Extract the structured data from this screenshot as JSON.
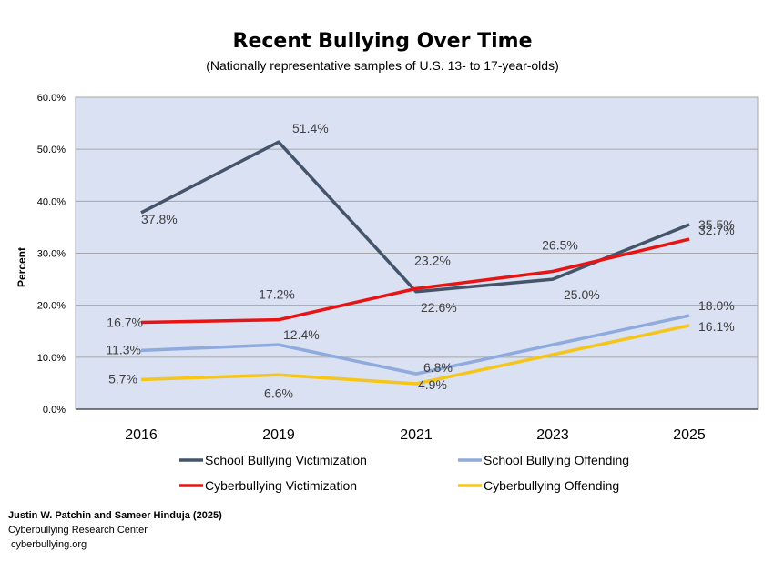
{
  "chart_data": {
    "type": "line",
    "title": "Recent Bullying Over Time",
    "subtitle": "(Nationally representative samples of U.S. 13- to 17-year-olds)",
    "xlabel": "",
    "ylabel": "Percent",
    "categories": [
      "2016",
      "2019",
      "2021",
      "2023",
      "2025"
    ],
    "ylim": [
      0,
      60
    ],
    "yticks": [
      0,
      10,
      20,
      30,
      40,
      50,
      60
    ],
    "ytick_labels": [
      "0.0%",
      "10.0%",
      "20.0%",
      "30.0%",
      "40.0%",
      "50.0%",
      "60.0%"
    ],
    "grid": true,
    "legend_position": "bottom",
    "series": [
      {
        "name": "School Bullying Victimization",
        "color": "#44546A",
        "values": [
          37.8,
          51.4,
          22.6,
          25.0,
          35.5
        ],
        "labels": [
          "37.8%",
          "51.4%",
          "22.6%",
          "25.0%",
          "35.5%"
        ]
      },
      {
        "name": "School Bullying Offending",
        "color": "#8FAADC",
        "values": [
          11.3,
          12.4,
          6.8,
          null,
          18.0
        ],
        "labels": [
          "11.3%",
          "12.4%",
          "6.8%",
          null,
          "18.0%"
        ]
      },
      {
        "name": "Cyberbullying Victimization",
        "color": "#E81414",
        "values": [
          16.7,
          17.2,
          23.2,
          26.5,
          32.7
        ],
        "labels": [
          "16.7%",
          "17.2%",
          "23.2%",
          "26.5%",
          "32.7%"
        ]
      },
      {
        "name": "Cyberbullying Offending",
        "color": "#F5C518",
        "values": [
          5.7,
          6.6,
          4.9,
          null,
          16.1
        ],
        "labels": [
          "5.7%",
          "6.6%",
          "4.9%",
          null,
          "16.1%"
        ]
      }
    ]
  },
  "credits": {
    "authors": "Justin W. Patchin and Sameer Hinduja (2025)",
    "center": "Cyberbullying Research Center",
    "website": "cyberbullying.org"
  },
  "colors": {
    "plot_background": "#D9E1F2",
    "gridline": "#A6A6A6",
    "axis": "#000000"
  }
}
